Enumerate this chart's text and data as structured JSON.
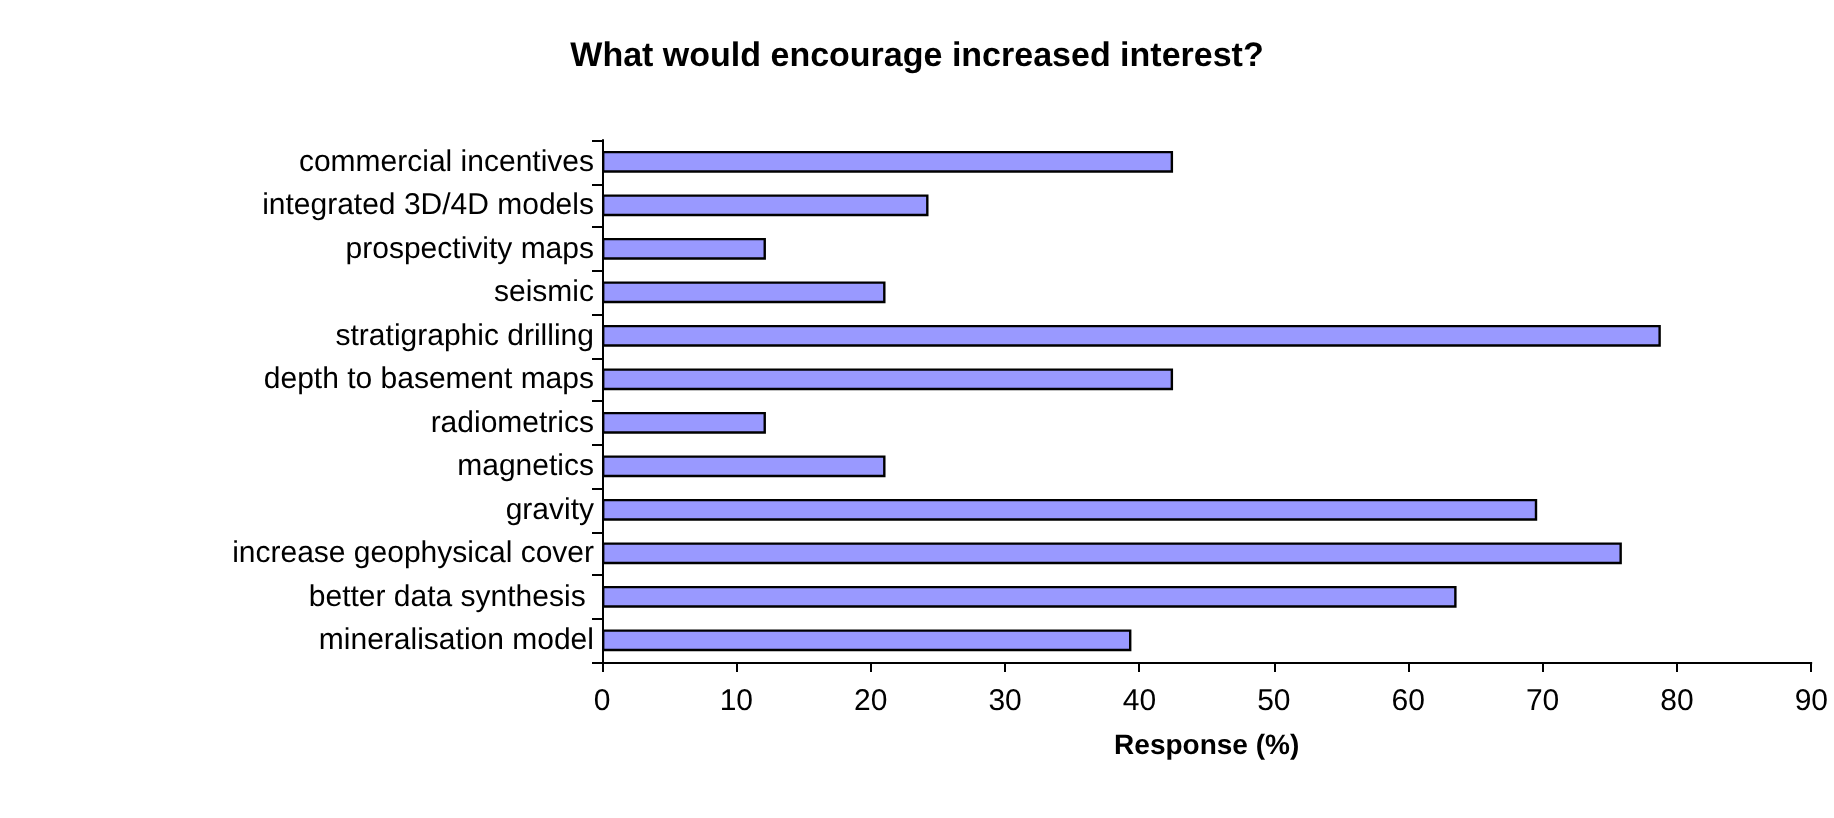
{
  "chart_data": {
    "type": "bar",
    "orientation": "horizontal",
    "title": "What would encourage increased interest?",
    "xlabel": "Response (%)",
    "categories": [
      "commercial incentives",
      "integrated 3D/4D models",
      "prospectivity maps",
      "seismic",
      "stratigraphic drilling",
      "depth to basement maps",
      "radiometrics",
      "magnetics",
      "gravity",
      "increase geophysical cover",
      "better data synthesis ",
      "mineralisation model"
    ],
    "values": [
      42.5,
      24.3,
      12.2,
      21.1,
      78.8,
      42.5,
      12.2,
      21.1,
      69.6,
      75.9,
      63.6,
      39.4
    ],
    "color": "#9999ff",
    "xlim": [
      0,
      90
    ],
    "xticks": [
      0,
      10,
      20,
      30,
      40,
      50,
      60,
      70,
      80,
      90
    ],
    "grid": false
  }
}
